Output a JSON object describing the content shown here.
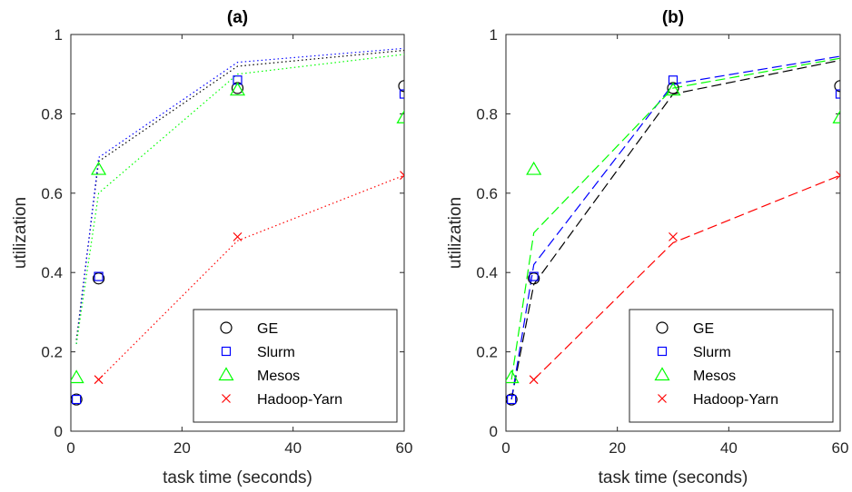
{
  "chart_data": [
    {
      "type": "scatter",
      "title": "(a)",
      "xlabel": "task time (seconds)",
      "ylabel": "utilization",
      "xlim": [
        0,
        60
      ],
      "ylim": [
        0,
        1
      ],
      "xticks": [
        0,
        20,
        40,
        60
      ],
      "yticks": [
        0,
        0.2,
        0.4,
        0.6,
        0.8,
        1
      ],
      "grid": false,
      "legend_position": "bottom-right",
      "line_style": "dotted",
      "series": [
        {
          "name": "GE",
          "color": "#000000",
          "marker": "circle",
          "x": [
            1,
            5,
            30,
            60
          ],
          "y": [
            0.08,
            0.385,
            0.865,
            0.87
          ],
          "fit_y": [
            0.23,
            0.68,
            0.92,
            0.96
          ]
        },
        {
          "name": "Slurm",
          "color": "#0000ff",
          "marker": "square",
          "x": [
            1,
            5,
            30,
            60
          ],
          "y": [
            0.08,
            0.39,
            0.885,
            0.85
          ],
          "fit_y": [
            0.22,
            0.69,
            0.93,
            0.965
          ]
        },
        {
          "name": "Mesos",
          "color": "#00ff00",
          "marker": "triangle",
          "x": [
            1,
            5,
            30,
            60
          ],
          "y": [
            0.135,
            0.66,
            0.86,
            0.79
          ],
          "fit_y": [
            0.22,
            0.6,
            0.9,
            0.95
          ]
        },
        {
          "name": "Hadoop-Yarn",
          "color": "#ff0000",
          "marker": "x",
          "x": [
            5,
            30,
            60
          ],
          "y": [
            0.13,
            0.49,
            0.645
          ],
          "fit_y": [
            0.13,
            0.48,
            0.645
          ]
        }
      ]
    },
    {
      "type": "scatter",
      "title": "(b)",
      "xlabel": "task time (seconds)",
      "ylabel": "utilization",
      "xlim": [
        0,
        60
      ],
      "ylim": [
        0,
        1
      ],
      "xticks": [
        0,
        20,
        40,
        60
      ],
      "yticks": [
        0,
        0.2,
        0.4,
        0.6,
        0.8,
        1
      ],
      "grid": false,
      "legend_position": "bottom-right",
      "line_style": "dashed",
      "series": [
        {
          "name": "GE",
          "color": "#000000",
          "marker": "circle",
          "x": [
            1,
            5,
            30,
            60
          ],
          "y": [
            0.08,
            0.385,
            0.865,
            0.87
          ],
          "fit_y": [
            0.08,
            0.37,
            0.85,
            0.935
          ]
        },
        {
          "name": "Slurm",
          "color": "#0000ff",
          "marker": "square",
          "x": [
            1,
            5,
            30,
            60
          ],
          "y": [
            0.08,
            0.39,
            0.885,
            0.85
          ],
          "fit_y": [
            0.08,
            0.42,
            0.875,
            0.945
          ]
        },
        {
          "name": "Mesos",
          "color": "#00ff00",
          "marker": "triangle",
          "x": [
            1,
            5,
            30,
            60
          ],
          "y": [
            0.135,
            0.66,
            0.86,
            0.79
          ],
          "fit_y": [
            0.13,
            0.5,
            0.865,
            0.94
          ]
        },
        {
          "name": "Hadoop-Yarn",
          "color": "#ff0000",
          "marker": "x",
          "x": [
            5,
            30,
            60
          ],
          "y": [
            0.13,
            0.49,
            0.645
          ],
          "fit_y": [
            0.13,
            0.475,
            0.645
          ]
        }
      ]
    }
  ]
}
